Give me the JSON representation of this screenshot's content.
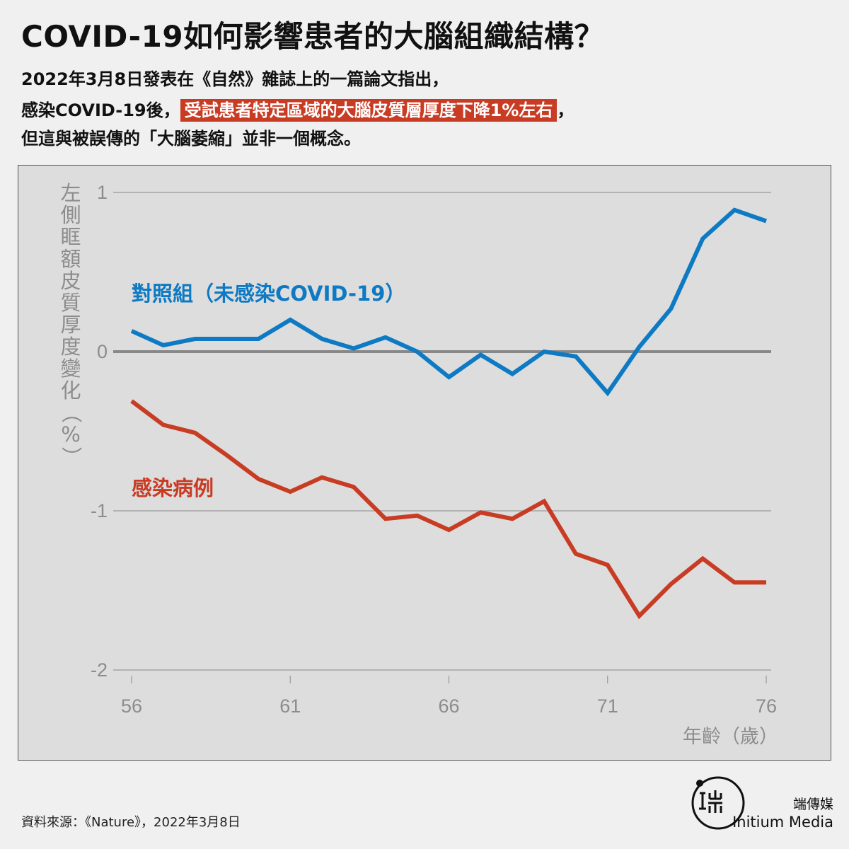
{
  "title": "COVID-19如何影響患者的大腦組織結構？",
  "subtitle": {
    "line1": "2022年3月8日發表在《自然》雜誌上的一篇論文指出，",
    "line2_pre": "感染COVID-19後，",
    "line2_highlight": "受試患者特定區域的大腦皮質層厚度下降1%左右",
    "line2_post": "，",
    "line3": "但這與被誤傳的「大腦萎縮」並非一個概念。"
  },
  "colors": {
    "control": "#0d7ac3",
    "infected": "#c83c24",
    "highlight": "#c83c24",
    "grid": "#999999",
    "zero_line": "#888888",
    "axis_text": "#8c8c8c"
  },
  "chart_data": {
    "type": "line",
    "ylabel": "左側眶額皮質厚度變化（%）",
    "xlabel": "年齡（歲）",
    "xlim": [
      56,
      76
    ],
    "ylim": [
      -2,
      1
    ],
    "xticks": [
      "56",
      "61",
      "66",
      "71",
      "76"
    ],
    "yticks": [
      "1",
      "0",
      "-1",
      "-2"
    ],
    "x": [
      56,
      57,
      58,
      59,
      60,
      61,
      62,
      63,
      64,
      65,
      66,
      67,
      68,
      69,
      70,
      71,
      72,
      73,
      74,
      75,
      76
    ],
    "series": [
      {
        "name": "對照組（未感染COVID-19）",
        "color": "#0d7ac3",
        "values": [
          0.13,
          0.04,
          0.08,
          0.08,
          0.08,
          0.2,
          0.08,
          0.02,
          0.09,
          0.0,
          -0.16,
          -0.02,
          -0.14,
          0.0,
          -0.03,
          -0.26,
          0.03,
          0.27,
          0.71,
          0.89,
          0.82
        ]
      },
      {
        "name": "感染病例",
        "color": "#c83c24",
        "values": [
          -0.31,
          -0.46,
          -0.51,
          -0.65,
          -0.8,
          -0.88,
          -0.79,
          -0.85,
          -1.05,
          -1.03,
          -1.12,
          -1.01,
          -1.05,
          -0.94,
          -1.27,
          -1.34,
          -1.66,
          -1.46,
          -1.3,
          -1.45,
          -1.45
        ]
      }
    ]
  },
  "source": "資料來源：《Nature》，2022年3月8日",
  "brand": {
    "name_cn": "端傳媒",
    "name_en": "Initium Media"
  }
}
